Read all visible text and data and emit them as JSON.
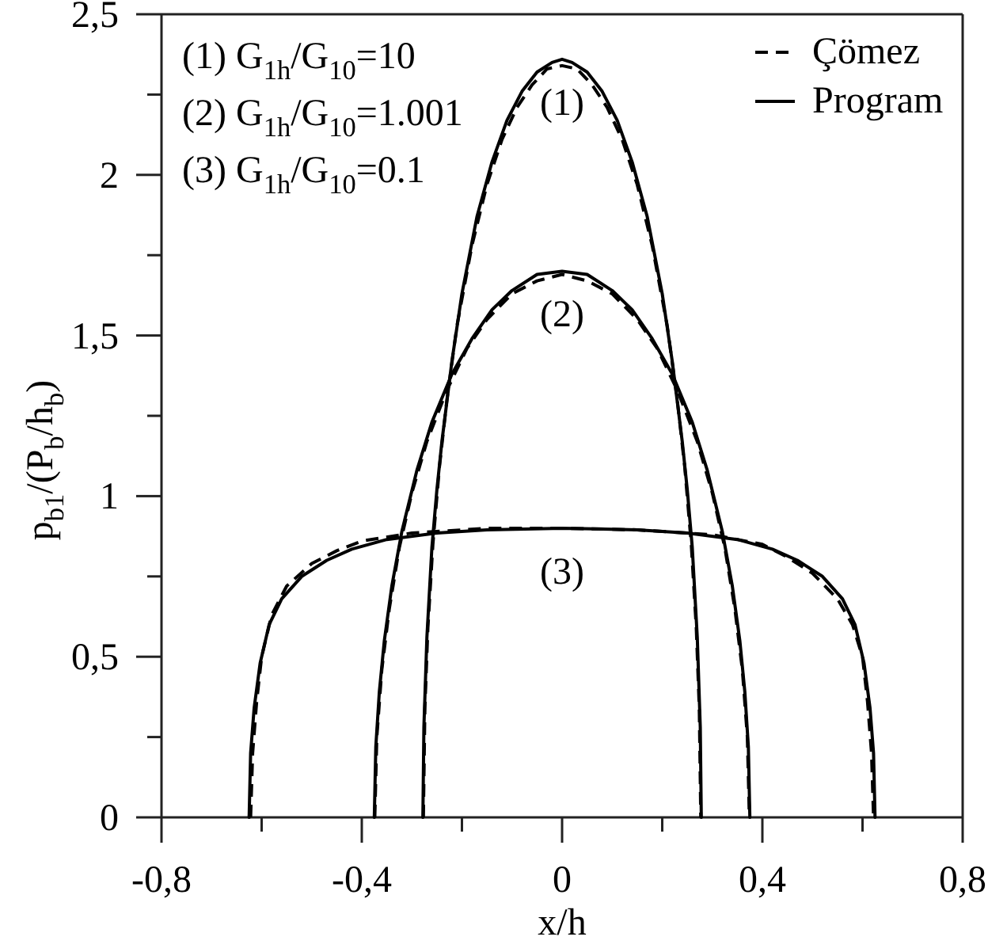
{
  "chart_data": {
    "type": "line",
    "xlabel": "x/h",
    "ylabel": "p$_{b1}$/(P$_{b}$/h$_{b}$)",
    "xlim": [
      -0.8,
      0.8
    ],
    "xticks": [
      {
        "value": -0.8,
        "label": "-0,8"
      },
      {
        "value": -0.6,
        "label": null
      },
      {
        "value": -0.4,
        "label": "-0,4"
      },
      {
        "value": -0.2,
        "label": null
      },
      0,
      {
        "value": 0.2,
        "label": null
      },
      {
        "value": 0.4,
        "label": "0,4"
      },
      {
        "value": 0.6,
        "label": null
      },
      {
        "value": 0.8,
        "label": "0,8"
      }
    ],
    "ylim": [
      0,
      2.5
    ],
    "yticks": [
      0,
      {
        "value": 0.25,
        "label": null
      },
      {
        "value": 0.5,
        "label": "0,5"
      },
      {
        "value": 0.75,
        "label": null
      },
      1,
      {
        "value": 1.25,
        "label": null
      },
      {
        "value": 1.5,
        "label": "1,5"
      },
      {
        "value": 1.75,
        "label": null
      },
      2,
      {
        "value": 2.25,
        "label": null
      },
      {
        "value": 2.5,
        "label": "2,5"
      }
    ],
    "legend": "top right",
    "annotations": [
      "(1) G$_{1h}$/G$_{10}$=10",
      "(2) G$_{1h}$/G$_{10}$=1.001",
      "(3) G$_{1h}$/G$_{10}$=0.1",
      "(1)",
      "(2)",
      "(3)"
    ],
    "series": [
      {
        "name": "Çömez",
        "color": "#000000",
        "line_style": "dashed",
        "x": [
          -0.277,
          -0.274,
          -0.268,
          -0.258,
          -0.245,
          -0.23,
          -0.21,
          -0.18,
          -0.15,
          -0.12,
          -0.09,
          -0.06,
          -0.03,
          0,
          0.03,
          0.06,
          0.09,
          0.12,
          0.15,
          0.18,
          0.21,
          0.23,
          0.245,
          0.258,
          0.268,
          0.274,
          0.277
        ],
        "values": [
          0,
          0.34,
          0.59,
          0.85,
          1.09,
          1.3,
          1.53,
          1.78,
          1.97,
          2.11,
          2.21,
          2.28,
          2.33,
          2.34,
          2.33,
          2.28,
          2.21,
          2.11,
          1.97,
          1.78,
          1.53,
          1.3,
          1.09,
          0.85,
          0.59,
          0.34,
          0
        ]
      },
      {
        "color": "#000000",
        "line_style": "dashed",
        "x": [
          -0.374,
          -0.37,
          -0.36,
          -0.345,
          -0.325,
          -0.3,
          -0.27,
          -0.23,
          -0.19,
          -0.15,
          -0.1,
          -0.05,
          0,
          0.05,
          0.1,
          0.15,
          0.19,
          0.23,
          0.27,
          0.3,
          0.325,
          0.345,
          0.36,
          0.37,
          0.374
        ],
        "values": [
          0,
          0.25,
          0.46,
          0.65,
          0.84,
          1.01,
          1.17,
          1.33,
          1.46,
          1.55,
          1.63,
          1.67,
          1.69,
          1.67,
          1.63,
          1.55,
          1.46,
          1.33,
          1.17,
          1.01,
          0.84,
          0.65,
          0.46,
          0.25,
          0
        ]
      },
      {
        "color": "#000000",
        "line_style": "dashed",
        "x": [
          -0.622,
          -0.618,
          -0.61,
          -0.6,
          -0.58,
          -0.55,
          -0.5,
          -0.45,
          -0.4,
          -0.3,
          -0.15,
          0,
          0.15,
          0.3,
          0.4,
          0.45,
          0.5,
          0.55,
          0.58,
          0.6,
          0.61,
          0.618,
          0.622
        ],
        "values": [
          0,
          0.2,
          0.36,
          0.5,
          0.63,
          0.72,
          0.79,
          0.83,
          0.86,
          0.885,
          0.9,
          0.9,
          0.895,
          0.88,
          0.85,
          0.81,
          0.76,
          0.68,
          0.6,
          0.5,
          0.36,
          0.2,
          0
        ]
      },
      {
        "name": "Program",
        "color": "#000000",
        "line_style": "solid",
        "x": [
          -0.278,
          -0.276,
          -0.27,
          -0.26,
          -0.25,
          -0.24,
          -0.22,
          -0.2,
          -0.17,
          -0.14,
          -0.11,
          -0.08,
          -0.05,
          -0.02,
          0,
          0.02,
          0.05,
          0.08,
          0.11,
          0.14,
          0.17,
          0.2,
          0.22,
          0.24,
          0.25,
          0.26,
          0.27,
          0.276,
          0.278
        ],
        "values": [
          0,
          0.28,
          0.56,
          0.84,
          1.02,
          1.17,
          1.42,
          1.63,
          1.87,
          2.04,
          2.17,
          2.26,
          2.32,
          2.35,
          2.36,
          2.35,
          2.32,
          2.26,
          2.17,
          2.04,
          1.87,
          1.63,
          1.42,
          1.17,
          1.02,
          0.84,
          0.56,
          0.28,
          0
        ]
      },
      {
        "color": "#000000",
        "line_style": "solid",
        "x": [
          -0.375,
          -0.372,
          -0.365,
          -0.355,
          -0.34,
          -0.32,
          -0.29,
          -0.26,
          -0.22,
          -0.18,
          -0.14,
          -0.1,
          -0.05,
          0,
          0.05,
          0.1,
          0.14,
          0.18,
          0.22,
          0.26,
          0.29,
          0.32,
          0.34,
          0.355,
          0.365,
          0.372,
          0.375
        ],
        "values": [
          0,
          0.22,
          0.39,
          0.55,
          0.72,
          0.89,
          1.08,
          1.23,
          1.38,
          1.49,
          1.58,
          1.64,
          1.69,
          1.7,
          1.69,
          1.64,
          1.58,
          1.49,
          1.38,
          1.23,
          1.08,
          0.89,
          0.72,
          0.55,
          0.39,
          0.22,
          0
        ]
      },
      {
        "color": "#000000",
        "line_style": "solid",
        "x": [
          -0.625,
          -0.622,
          -0.615,
          -0.603,
          -0.585,
          -0.56,
          -0.52,
          -0.47,
          -0.42,
          -0.35,
          -0.25,
          -0.15,
          0,
          0.15,
          0.25,
          0.35,
          0.42,
          0.47,
          0.52,
          0.56,
          0.585,
          0.603,
          0.615,
          0.622,
          0.625
        ],
        "values": [
          0,
          0.2,
          0.34,
          0.48,
          0.6,
          0.68,
          0.75,
          0.8,
          0.835,
          0.865,
          0.885,
          0.895,
          0.9,
          0.895,
          0.885,
          0.865,
          0.835,
          0.8,
          0.75,
          0.68,
          0.6,
          0.48,
          0.34,
          0.2,
          0
        ]
      }
    ]
  }
}
